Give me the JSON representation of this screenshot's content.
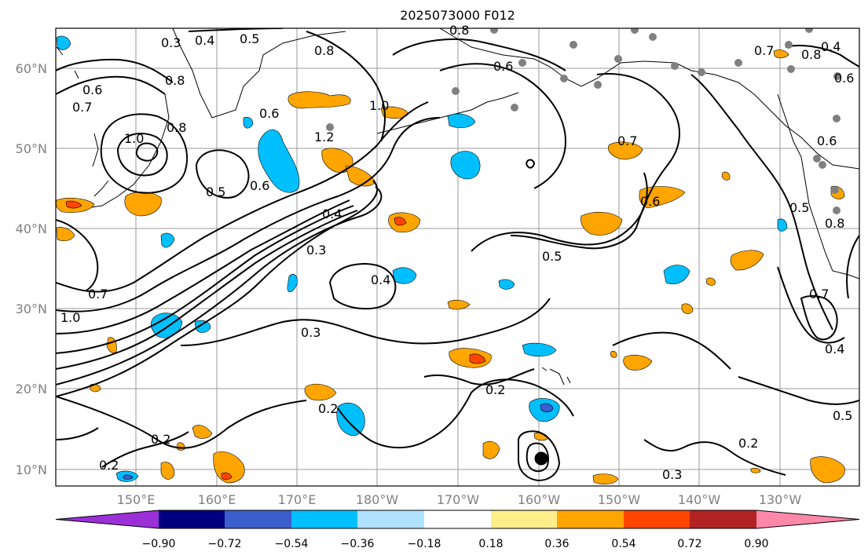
{
  "title": "2025073000 F012",
  "lat_labels": [
    "60°N",
    "50°N",
    "40°N",
    "30°N",
    "20°N",
    "10°N"
  ],
  "lon_labels": [
    "150°E",
    "160°E",
    "170°E",
    "180°W",
    "170°W",
    "160°W",
    "150°W",
    "140°W",
    "130°W"
  ],
  "colorbar": {
    "labels": [
      "−0.90",
      "−0.72",
      "−0.54",
      "−0.36",
      "−0.18",
      "0.18",
      "0.36",
      "0.54",
      "0.72",
      "0.90"
    ],
    "colors": [
      "#9b30d9",
      "#000080",
      "#3a5fcd",
      "#00bfff",
      "#b0e2ff",
      "#ffffff",
      "#ffee8a",
      "#ffa500",
      "#ff4500",
      "#b22222",
      "#ff88aa"
    ]
  },
  "contour_labels": [
    "0.3",
    "0.4",
    "0.5",
    "0.8",
    "0.6",
    "0.7",
    "0.8",
    "0.6",
    "1.0",
    "1.2",
    "1.0",
    "0.8",
    "0.5",
    "0.6",
    "0.4",
    "0.3",
    "0.4",
    "0.5",
    "0.3",
    "0.7",
    "0.6",
    "0.7",
    "0.2",
    "0.2",
    "0.2",
    "0.2",
    "0.3",
    "0.2",
    "0.5",
    "0.4",
    "0.7",
    "0.5",
    "0.6",
    "0.8",
    "0.8",
    "0.4",
    "0.6",
    "1.0",
    "0.8",
    "0.7",
    "0.6"
  ]
}
